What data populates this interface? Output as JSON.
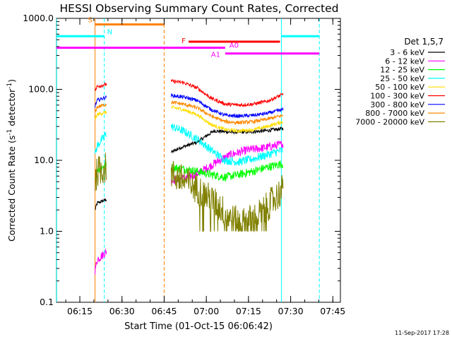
{
  "chart_data": {
    "type": "line",
    "title": "HESSI Observing Summary Count Rates, Corrected",
    "xlabel": "Start Time (01-Oct-15 06:06:42)",
    "ylabel_main": "Corrected Count Rate (s",
    "ylabel_sup1": "-1",
    "ylabel_mid": " detector",
    "ylabel_sup2": "-1",
    "ylabel_end": ")",
    "y_scale": "log",
    "ylim": [
      0.1,
      1000
    ],
    "xlim_minutes": [
      0,
      101
    ],
    "xticks": [
      {
        "label": "06:15",
        "min": 8.3
      },
      {
        "label": "06:30",
        "min": 23.3
      },
      {
        "label": "06:45",
        "min": 38.3
      },
      {
        "label": "07:00",
        "min": 53.3
      },
      {
        "label": "07:15",
        "min": 68.3
      },
      {
        "label": "07:30",
        "min": 83.3
      },
      {
        "label": "07:45",
        "min": 98.3
      }
    ],
    "yticks": [
      {
        "label": "0.1",
        "value": 0.1
      },
      {
        "label": "1.0",
        "value": 1
      },
      {
        "label": "10.0",
        "value": 10
      },
      {
        "label": "100.0",
        "value": 100
      },
      {
        "label": "1000.0",
        "value": 1000
      }
    ],
    "legend_title": "Det 1,5,7",
    "legend_position": "right",
    "timestamp": "11-Sep-2017 17:28",
    "data_segments": [
      [
        13.7,
        17.8
      ],
      [
        40.8,
        80.6
      ]
    ],
    "series": [
      {
        "name": "3 - 6 keV",
        "color": "#000000",
        "seg1": [
          [
            13.7,
            2.0
          ],
          [
            14.5,
            2.5
          ],
          [
            17.8,
            2.8
          ]
        ],
        "seg2": [
          [
            40.8,
            13
          ],
          [
            44,
            15
          ],
          [
            50,
            18
          ],
          [
            56,
            26
          ],
          [
            62,
            25
          ],
          [
            68,
            25
          ],
          [
            74,
            26
          ],
          [
            80.6,
            28
          ]
        ]
      },
      {
        "name": "6 - 12 keV",
        "color": "#ff00ff",
        "seg1": [
          [
            13.7,
            0.28
          ],
          [
            14.5,
            0.4
          ],
          [
            17.8,
            0.52
          ]
        ],
        "seg2": [
          [
            40.8,
            5.3
          ],
          [
            46,
            5.6
          ],
          [
            50,
            6.5
          ],
          [
            54,
            8
          ],
          [
            58,
            10
          ],
          [
            62,
            12
          ],
          [
            68,
            14
          ],
          [
            74,
            15
          ],
          [
            80.6,
            17
          ]
        ]
      },
      {
        "name": "12 - 25 keV",
        "color": "#00ff00",
        "seg1": [
          [
            13.7,
            5.5
          ],
          [
            14.5,
            7.5
          ],
          [
            17.8,
            8.5
          ]
        ],
        "seg2": [
          [
            40.8,
            8
          ],
          [
            46,
            7.5
          ],
          [
            50,
            7
          ],
          [
            55,
            6.3
          ],
          [
            60,
            5.8
          ],
          [
            65,
            6.3
          ],
          [
            70,
            7
          ],
          [
            75,
            8
          ],
          [
            80.6,
            9
          ]
        ]
      },
      {
        "name": "25 - 50 keV",
        "color": "#00ffff",
        "seg1": [
          [
            13.7,
            12
          ],
          [
            14.5,
            16
          ],
          [
            17.8,
            24
          ]
        ],
        "seg2": [
          [
            40.8,
            30
          ],
          [
            45,
            26
          ],
          [
            50,
            20
          ],
          [
            55,
            14
          ],
          [
            60,
            10
          ],
          [
            65,
            9.5
          ],
          [
            70,
            10.5
          ],
          [
            75,
            12
          ],
          [
            80.6,
            14
          ]
        ]
      },
      {
        "name": "50 - 100 keV",
        "color": "#ffdd00",
        "seg1": [
          [
            13.7,
            38
          ],
          [
            14.5,
            44
          ],
          [
            17.8,
            48
          ]
        ],
        "seg2": [
          [
            40.8,
            56
          ],
          [
            45,
            52
          ],
          [
            50,
            44
          ],
          [
            55,
            32
          ],
          [
            60,
            27
          ],
          [
            65,
            26
          ],
          [
            70,
            27
          ],
          [
            75,
            30
          ],
          [
            80.6,
            35
          ]
        ]
      },
      {
        "name": "100 - 300 keV",
        "color": "#ff0000",
        "seg1": [
          [
            13.7,
            95
          ],
          [
            14.5,
            110
          ],
          [
            17.8,
            118
          ]
        ],
        "seg2": [
          [
            40.8,
            130
          ],
          [
            45,
            125
          ],
          [
            50,
            105
          ],
          [
            55,
            75
          ],
          [
            60,
            62
          ],
          [
            65,
            60
          ],
          [
            70,
            62
          ],
          [
            75,
            68
          ],
          [
            80.6,
            85
          ]
        ]
      },
      {
        "name": "300 - 800 keV",
        "color": "#0000ff",
        "seg1": [
          [
            13.7,
            58
          ],
          [
            14.5,
            70
          ],
          [
            17.8,
            78
          ]
        ],
        "seg2": [
          [
            40.8,
            82
          ],
          [
            45,
            78
          ],
          [
            50,
            70
          ],
          [
            55,
            52
          ],
          [
            60,
            43
          ],
          [
            65,
            42
          ],
          [
            70,
            43
          ],
          [
            75,
            46
          ],
          [
            80.6,
            52
          ]
        ]
      },
      {
        "name": "800 - 7000 keV",
        "color": "#ff8800",
        "seg1": [
          [
            13.7,
            48
          ],
          [
            14.5,
            56
          ],
          [
            17.8,
            62
          ]
        ],
        "seg2": [
          [
            40.8,
            66
          ],
          [
            45,
            62
          ],
          [
            50,
            55
          ],
          [
            55,
            42
          ],
          [
            60,
            35
          ],
          [
            65,
            34
          ],
          [
            70,
            35
          ],
          [
            75,
            38
          ],
          [
            80.6,
            43
          ]
        ]
      },
      {
        "name": "7000 - 20000 keV",
        "color": "#808000",
        "seg1": [
          [
            13.7,
            5
          ],
          [
            14.5,
            7
          ],
          [
            17.8,
            8
          ]
        ],
        "seg2": [
          [
            40.8,
            6.5
          ],
          [
            46,
            5
          ],
          [
            50,
            4
          ],
          [
            54,
            3
          ],
          [
            58,
            2.2
          ],
          [
            62,
            1.5
          ],
          [
            66,
            1.3
          ],
          [
            70,
            1.5
          ],
          [
            74,
            2
          ],
          [
            78,
            3
          ],
          [
            80.6,
            4
          ]
        ]
      }
    ],
    "flag_bars": [
      {
        "label": "S",
        "color": "#ff8000",
        "y": 820,
        "x0": 13.7,
        "x1": 38.3
      },
      {
        "label": "N",
        "color": "#00ffff",
        "y": 560,
        "x0": 0,
        "x1": 17.0
      },
      {
        "label": "N",
        "color": "#00ffff",
        "y": 560,
        "x0": 80.0,
        "x1": 93.5
      },
      {
        "label": "F",
        "color": "#ff0000",
        "y": 470,
        "x0": 47.0,
        "x1": 79.5
      },
      {
        "label": "A0",
        "color": "#ff00ff",
        "y": 385,
        "x0": 0,
        "x1": 60.0
      },
      {
        "label": "A1",
        "color": "#ff00ff",
        "y": 320,
        "x0": 60.0,
        "x1": 93.5
      }
    ],
    "vertical_lines": [
      {
        "min": 0.05,
        "color": "#00ffff",
        "style": "solid"
      },
      {
        "min": 13.7,
        "color": "#ff8000",
        "style": "solid"
      },
      {
        "min": 17.0,
        "color": "#00ffff",
        "style": "dashed"
      },
      {
        "min": 38.3,
        "color": "#ff8000",
        "style": "dashed"
      },
      {
        "min": 80.0,
        "color": "#00ffff",
        "style": "solid"
      },
      {
        "min": 93.5,
        "color": "#00ffff",
        "style": "dashed"
      }
    ]
  }
}
